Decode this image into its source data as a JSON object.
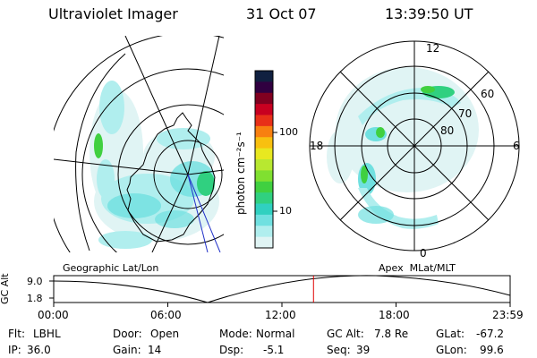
{
  "header": {
    "instrument": "Ultraviolet Imager",
    "date": "31 Oct 07",
    "time": "13:39:50 UT"
  },
  "left_panel": {
    "caption": "Geographic Lat/Lon"
  },
  "right_panel": {
    "caption": "Apex  MLat/MLT",
    "mlt_labels": {
      "top": "12",
      "left": "18",
      "right": "6",
      "bottom": "0"
    },
    "lat_labels": [
      "60",
      "70",
      "80"
    ]
  },
  "colorbar": {
    "unit_label": "photon cm⁻²s⁻¹",
    "tick_labels": [
      "100",
      "10"
    ],
    "colors": [
      "#102040",
      "#300040",
      "#800020",
      "#c80020",
      "#e83018",
      "#f88010",
      "#f8c010",
      "#e8e820",
      "#b8e830",
      "#80e030",
      "#40d040",
      "#30d080",
      "#30d0c0",
      "#70e0e0",
      "#b0eeee",
      "#e0f4f4"
    ]
  },
  "altitude_plot": {
    "ylabel": "GC Alt",
    "y_ticks": [
      "9.0",
      "1.8"
    ],
    "x_ticks": [
      "00:00",
      "06:00",
      "12:00",
      "18:00",
      "23:59"
    ],
    "marker_color": "#e00000",
    "marker_time_hours": 13.66
  },
  "info": {
    "flt_label": "Flt:",
    "flt_value": "LBHL",
    "ip_label": "IP:",
    "ip_value": "36.0",
    "door_label": "Door:",
    "door_value": "Open",
    "gain_label": "Gain:",
    "gain_value": "14",
    "mode_label": "Mode:",
    "mode_value": "Normal",
    "dsp_label": "Dsp:",
    "dsp_value": "-5.1",
    "gcalt_label": "GC Alt:",
    "gcalt_value": "7.8 Re",
    "seq_label": "Seq:",
    "seq_value": "39",
    "glat_label": "GLat:",
    "glat_value": "-67.2",
    "glon_label": "GLon:",
    "glon_value": "99.6"
  }
}
